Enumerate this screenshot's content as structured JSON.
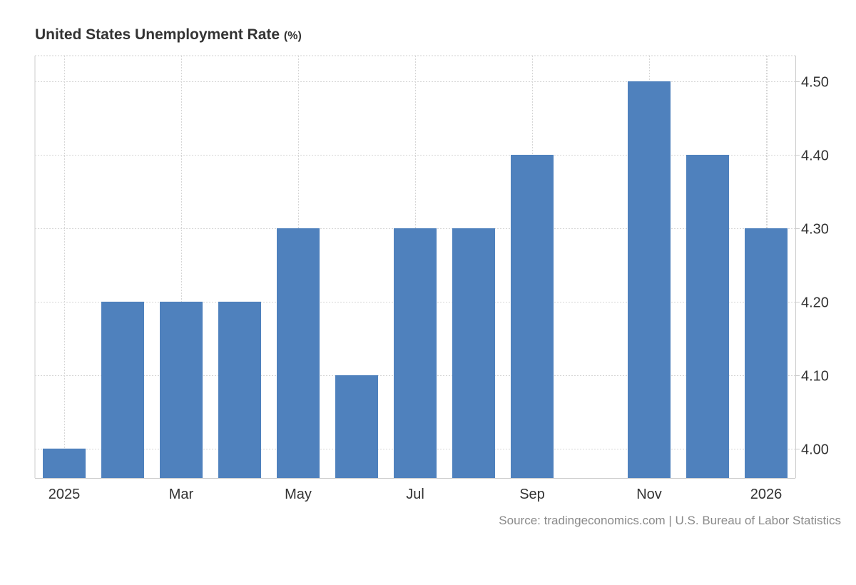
{
  "chart_data": {
    "type": "bar",
    "title": "United States Unemployment Rate",
    "title_unit": "(%)",
    "source": "Source: tradingeconomics.com | U.S. Bureau of Labor Statistics",
    "categories": [
      "2025-01",
      "2025-02",
      "2025-03",
      "2025-04",
      "2025-05",
      "2025-06",
      "2025-07",
      "2025-08",
      "2025-09",
      "2025-10",
      "2025-11",
      "2025-12",
      "2026-01"
    ],
    "values": [
      4.0,
      4.2,
      4.2,
      4.2,
      4.3,
      4.1,
      4.3,
      4.3,
      4.4,
      null,
      4.5,
      4.4,
      4.3
    ],
    "x_tick_labels": [
      {
        "category": "2025-01",
        "label": "2025"
      },
      {
        "category": "2025-03",
        "label": "Mar"
      },
      {
        "category": "2025-05",
        "label": "May"
      },
      {
        "category": "2025-07",
        "label": "Jul"
      },
      {
        "category": "2025-09",
        "label": "Sep"
      },
      {
        "category": "2025-11",
        "label": "Nov"
      },
      {
        "category": "2026-01",
        "label": "2026"
      }
    ],
    "y_ticks": [
      4.0,
      4.1,
      4.2,
      4.3,
      4.4,
      4.5
    ],
    "y_tick_labels": [
      "4.00",
      "4.10",
      "4.20",
      "4.30",
      "4.40",
      "4.50"
    ],
    "ylim": [
      3.96,
      4.535
    ],
    "y_axis_side": "right",
    "grid": true,
    "bar_color": "#4f81bd"
  }
}
